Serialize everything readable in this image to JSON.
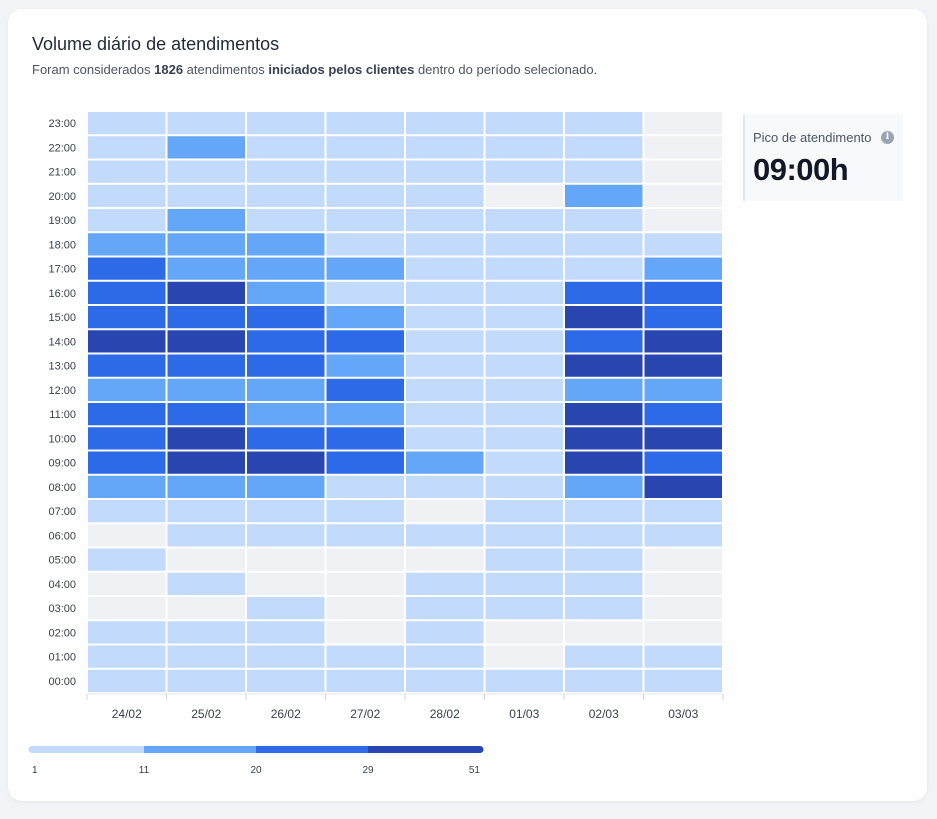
{
  "header": {
    "title": "Volume diário de atendimentos",
    "subtitle_prefix": "Foram considerados",
    "subtitle_count": "1826",
    "subtitle_mid": "atendimentos",
    "subtitle_bold": "iniciados pelos clientes",
    "subtitle_suffix": "dentro do período selecionado."
  },
  "peak": {
    "label": "Pico de atendimento",
    "value": "09:00h",
    "icon": "info-icon"
  },
  "colors": {
    "empty": "#eff1f4",
    "level1": "#c2dafb",
    "level2": "#64a6f7",
    "level3": "#2c6ae8",
    "level4": "#2946b0"
  },
  "chart_data": {
    "type": "heatmap",
    "x": [
      "24/02",
      "25/02",
      "26/02",
      "27/02",
      "28/02",
      "01/03",
      "02/03",
      "03/03"
    ],
    "y": [
      "23:00",
      "22:00",
      "21:00",
      "20:00",
      "19:00",
      "18:00",
      "17:00",
      "16:00",
      "15:00",
      "14:00",
      "13:00",
      "12:00",
      "11:00",
      "10:00",
      "09:00",
      "08:00",
      "07:00",
      "06:00",
      "05:00",
      "04:00",
      "03:00",
      "02:00",
      "01:00",
      "00:00"
    ],
    "levels": [
      [
        1,
        1,
        1,
        1,
        1,
        1,
        1,
        0
      ],
      [
        1,
        2,
        1,
        1,
        1,
        1,
        1,
        0
      ],
      [
        1,
        1,
        1,
        1,
        1,
        1,
        1,
        0
      ],
      [
        1,
        1,
        1,
        1,
        1,
        0,
        2,
        0
      ],
      [
        1,
        2,
        1,
        1,
        1,
        1,
        1,
        0
      ],
      [
        2,
        2,
        2,
        1,
        1,
        1,
        1,
        1
      ],
      [
        3,
        2,
        2,
        2,
        1,
        1,
        1,
        2
      ],
      [
        3,
        4,
        2,
        1,
        1,
        1,
        3,
        3
      ],
      [
        3,
        3,
        3,
        2,
        1,
        1,
        4,
        3
      ],
      [
        4,
        4,
        3,
        3,
        1,
        1,
        3,
        4
      ],
      [
        3,
        3,
        3,
        2,
        1,
        1,
        4,
        4
      ],
      [
        2,
        2,
        2,
        3,
        1,
        1,
        2,
        2
      ],
      [
        3,
        3,
        2,
        2,
        1,
        1,
        4,
        3
      ],
      [
        3,
        4,
        3,
        3,
        1,
        1,
        4,
        4
      ],
      [
        3,
        4,
        4,
        3,
        2,
        1,
        4,
        3
      ],
      [
        2,
        2,
        2,
        1,
        1,
        1,
        2,
        4
      ],
      [
        1,
        1,
        1,
        1,
        0,
        1,
        1,
        1
      ],
      [
        0,
        1,
        1,
        1,
        1,
        1,
        1,
        1
      ],
      [
        1,
        0,
        0,
        0,
        0,
        1,
        1,
        0
      ],
      [
        0,
        1,
        0,
        0,
        1,
        1,
        1,
        0
      ],
      [
        0,
        0,
        1,
        0,
        1,
        1,
        1,
        0
      ],
      [
        1,
        1,
        1,
        0,
        1,
        0,
        0,
        0
      ],
      [
        1,
        1,
        1,
        1,
        1,
        0,
        1,
        1
      ],
      [
        1,
        1,
        1,
        1,
        1,
        1,
        1,
        1
      ]
    ],
    "legend": {
      "ticks": [
        "1",
        "11",
        "20",
        "29",
        "51"
      ]
    }
  }
}
